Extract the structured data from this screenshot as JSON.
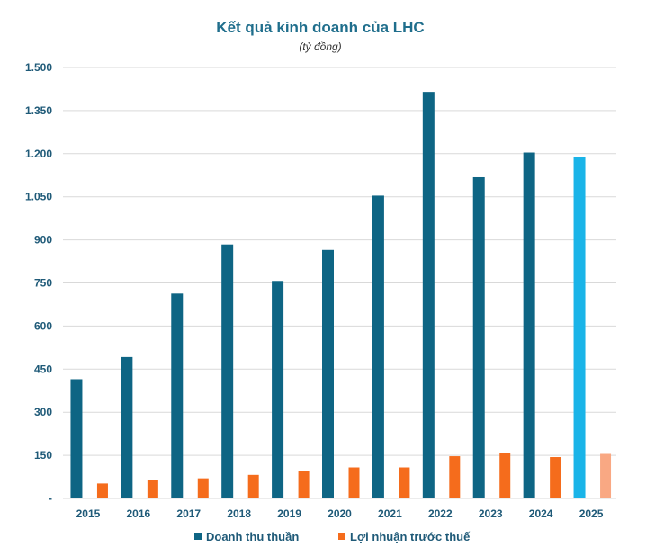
{
  "chart_data": {
    "type": "bar",
    "title": "Kết quả kinh doanh của LHC",
    "subtitle": "(tỷ đồng)",
    "categories": [
      "2015",
      "2016",
      "2017",
      "2018",
      "2019",
      "2020",
      "2021",
      "2022",
      "2023",
      "2024",
      "2025"
    ],
    "series": [
      {
        "name": "Doanh thu thuần",
        "values": [
          415,
          492,
          713,
          884,
          757,
          865,
          1054,
          1415,
          1118,
          1204,
          1190
        ],
        "color": "#0e6584",
        "highlight": {
          "index": 10,
          "color": "#1ab4e8"
        }
      },
      {
        "name": "Lợi nhuận trước thuế",
        "values": [
          52,
          65,
          70,
          82,
          97,
          108,
          108,
          147,
          158,
          144,
          155
        ],
        "color": "#f56c1c",
        "highlight": {
          "index": 10,
          "color": "#f9a883"
        }
      }
    ],
    "yticks": [
      {
        "value": 0,
        "label": "-"
      },
      {
        "value": 150,
        "label": "150"
      },
      {
        "value": 300,
        "label": "300"
      },
      {
        "value": 450,
        "label": "450"
      },
      {
        "value": 600,
        "label": "600"
      },
      {
        "value": 750,
        "label": "750"
      },
      {
        "value": 900,
        "label": "900"
      },
      {
        "value": 1050,
        "label": "1.050"
      },
      {
        "value": 1200,
        "label": "1.200"
      },
      {
        "value": 1350,
        "label": "1.350"
      },
      {
        "value": 1500,
        "label": "1.500"
      }
    ],
    "ylim": [
      0,
      1500
    ],
    "grid": true,
    "legend_position": "bottom"
  }
}
